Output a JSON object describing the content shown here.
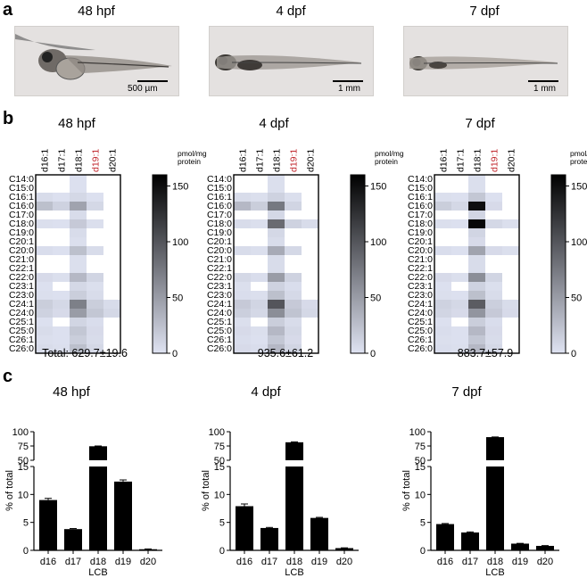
{
  "panels": {
    "a": "a",
    "b": "b",
    "c": "c"
  },
  "stages": [
    "48 hpf",
    "4 dpf",
    "7 dpf"
  ],
  "scale_bars": [
    "500 µm",
    "1 mm",
    "1 mm"
  ],
  "heatmap_totals": [
    "Total: 629.7±19.6",
    "935.6±61.2",
    "883.7±57.9"
  ],
  "colorbar_unit": "pmol/mg\nprotein",
  "colors": {
    "bar": "#000000",
    "heat_low": "#dfe3f2",
    "heat_high": "#000000",
    "highlight_label": "#c0262c"
  },
  "chart_data": [
    {
      "type": "heatmap",
      "title": "48 hpf",
      "x": [
        "d16:1",
        "d17:1",
        "d18:1",
        "d19:1",
        "d20:1"
      ],
      "x_highlight": "d19:1",
      "y": [
        "C14:0",
        "C15:0",
        "C16:1",
        "C16:0",
        "C17:0",
        "C18:0",
        "C19:0",
        "C20:1",
        "C20:0",
        "C21:0",
        "C22:1",
        "C22:0",
        "C23:1",
        "C23:0",
        "C24:1",
        "C24:0",
        "C25:1",
        "C25:0",
        "C26:1",
        "C26:0"
      ],
      "values": [
        [
          0,
          0,
          2,
          0,
          0
        ],
        [
          0,
          0,
          2,
          0,
          0
        ],
        [
          5,
          2,
          8,
          2,
          0
        ],
        [
          25,
          12,
          45,
          8,
          0
        ],
        [
          0,
          0,
          5,
          0,
          0
        ],
        [
          3,
          2,
          18,
          3,
          0
        ],
        [
          0,
          0,
          5,
          0,
          0
        ],
        [
          0,
          0,
          3,
          0,
          0
        ],
        [
          4,
          2,
          25,
          5,
          0
        ],
        [
          0,
          0,
          3,
          0,
          0
        ],
        [
          0,
          0,
          3,
          0,
          0
        ],
        [
          6,
          3,
          30,
          10,
          0
        ],
        [
          2,
          0,
          8,
          3,
          0
        ],
        [
          3,
          2,
          15,
          5,
          0
        ],
        [
          15,
          8,
          70,
          15,
          5
        ],
        [
          12,
          6,
          50,
          20,
          8
        ],
        [
          2,
          0,
          10,
          4,
          0
        ],
        [
          5,
          2,
          20,
          6,
          0
        ],
        [
          3,
          2,
          15,
          5,
          0
        ],
        [
          5,
          3,
          25,
          8,
          0
        ]
      ],
      "colorbar": {
        "ticks": [
          0,
          50,
          100,
          150
        ],
        "max": 160
      },
      "total": "Total: 629.7±19.6"
    },
    {
      "type": "heatmap",
      "title": "4 dpf",
      "x": [
        "d16:1",
        "d17:1",
        "d18:1",
        "d19:1",
        "d20:1"
      ],
      "x_highlight": "d19:1",
      "y": [
        "C14:0",
        "C15:0",
        "C16:1",
        "C16:0",
        "C17:0",
        "C18:0",
        "C19:0",
        "C20:1",
        "C20:0",
        "C21:0",
        "C22:1",
        "C22:0",
        "C23:1",
        "C23:0",
        "C24:1",
        "C24:0",
        "C25:1",
        "C25:0",
        "C26:1",
        "C26:0"
      ],
      "values": [
        [
          0,
          0,
          3,
          0,
          0
        ],
        [
          0,
          0,
          3,
          0,
          0
        ],
        [
          5,
          3,
          12,
          3,
          0
        ],
        [
          30,
          15,
          75,
          10,
          0
        ],
        [
          0,
          0,
          8,
          0,
          0
        ],
        [
          5,
          3,
          85,
          12,
          5
        ],
        [
          0,
          0,
          8,
          0,
          0
        ],
        [
          0,
          0,
          5,
          0,
          0
        ],
        [
          5,
          3,
          40,
          8,
          0
        ],
        [
          0,
          0,
          5,
          0,
          0
        ],
        [
          0,
          0,
          5,
          0,
          0
        ],
        [
          8,
          4,
          50,
          12,
          0
        ],
        [
          3,
          0,
          12,
          4,
          0
        ],
        [
          4,
          3,
          25,
          7,
          0
        ],
        [
          18,
          10,
          100,
          18,
          6
        ],
        [
          14,
          8,
          60,
          22,
          8
        ],
        [
          3,
          0,
          15,
          5,
          0
        ],
        [
          6,
          3,
          30,
          8,
          0
        ],
        [
          4,
          2,
          20,
          6,
          0
        ],
        [
          6,
          4,
          30,
          10,
          0
        ]
      ],
      "colorbar": {
        "ticks": [
          0,
          50,
          100,
          150
        ],
        "max": 160
      },
      "total": "935.6±61.2"
    },
    {
      "type": "heatmap",
      "title": "7 dpf",
      "x": [
        "d16:1",
        "d17:1",
        "d18:1",
        "d19:1",
        "d20:1"
      ],
      "x_highlight": "d19:1",
      "y": [
        "C14:0",
        "C15:0",
        "C16:1",
        "C16:0",
        "C17:0",
        "C18:0",
        "C19:0",
        "C20:1",
        "C20:0",
        "C21:0",
        "C22:1",
        "C22:0",
        "C23:1",
        "C23:0",
        "C24:1",
        "C24:0",
        "C25:1",
        "C25:0",
        "C26:1",
        "C26:0"
      ],
      "values": [
        [
          0,
          0,
          3,
          0,
          0
        ],
        [
          0,
          0,
          3,
          0,
          0
        ],
        [
          3,
          2,
          20,
          2,
          0
        ],
        [
          15,
          8,
          150,
          6,
          0
        ],
        [
          0,
          0,
          10,
          0,
          0
        ],
        [
          3,
          2,
          155,
          8,
          3
        ],
        [
          0,
          0,
          10,
          0,
          0
        ],
        [
          0,
          0,
          6,
          0,
          0
        ],
        [
          4,
          2,
          45,
          6,
          3
        ],
        [
          0,
          0,
          5,
          0,
          0
        ],
        [
          0,
          0,
          5,
          0,
          0
        ],
        [
          6,
          3,
          60,
          10,
          0
        ],
        [
          2,
          0,
          12,
          3,
          0
        ],
        [
          3,
          2,
          25,
          5,
          0
        ],
        [
          12,
          8,
          95,
          14,
          5
        ],
        [
          10,
          6,
          55,
          18,
          6
        ],
        [
          2,
          0,
          15,
          4,
          0
        ],
        [
          4,
          2,
          30,
          6,
          0
        ],
        [
          3,
          2,
          20,
          5,
          0
        ],
        [
          4,
          3,
          30,
          8,
          0
        ]
      ],
      "colorbar": {
        "ticks": [
          0,
          50,
          100,
          150
        ],
        "max": 160
      },
      "total": "883.7±57.9"
    },
    {
      "type": "bar",
      "title": "48 hpf",
      "categories": [
        "d16",
        "d17",
        "d18",
        "d19",
        "d20"
      ],
      "values": [
        9.0,
        3.8,
        74.5,
        12.3,
        0.2
      ],
      "errors": [
        0.3,
        0.1,
        0.5,
        0.3,
        0.05
      ],
      "xlabel": "LCB",
      "ylabel": "% of total",
      "broken_axis": {
        "lower": [
          0,
          15
        ],
        "upper": [
          50,
          100
        ]
      },
      "yticks_lower": [
        0,
        5,
        10,
        15
      ],
      "yticks_upper": [
        50,
        75,
        100
      ]
    },
    {
      "type": "bar",
      "title": "4 dpf",
      "categories": [
        "d16",
        "d17",
        "d18",
        "d19",
        "d20"
      ],
      "values": [
        7.9,
        4.0,
        81.5,
        5.8,
        0.4
      ],
      "errors": [
        0.4,
        0.1,
        0.8,
        0.1,
        0.05
      ],
      "xlabel": "LCB",
      "ylabel": "% of total",
      "broken_axis": {
        "lower": [
          0,
          15
        ],
        "upper": [
          50,
          100
        ]
      },
      "yticks_lower": [
        0,
        5,
        10,
        15
      ],
      "yticks_upper": [
        50,
        75,
        100
      ]
    },
    {
      "type": "bar",
      "title": "7 dpf",
      "categories": [
        "d16",
        "d17",
        "d18",
        "d19",
        "d20"
      ],
      "values": [
        4.7,
        3.2,
        90.5,
        1.2,
        0.8
      ],
      "errors": [
        0.1,
        0.1,
        0.3,
        0.05,
        0.05
      ],
      "xlabel": "LCB",
      "ylabel": "% of total",
      "broken_axis": {
        "lower": [
          0,
          15
        ],
        "upper": [
          50,
          100
        ]
      },
      "yticks_lower": [
        0,
        5,
        10,
        15
      ],
      "yticks_upper": [
        50,
        75,
        100
      ]
    }
  ]
}
